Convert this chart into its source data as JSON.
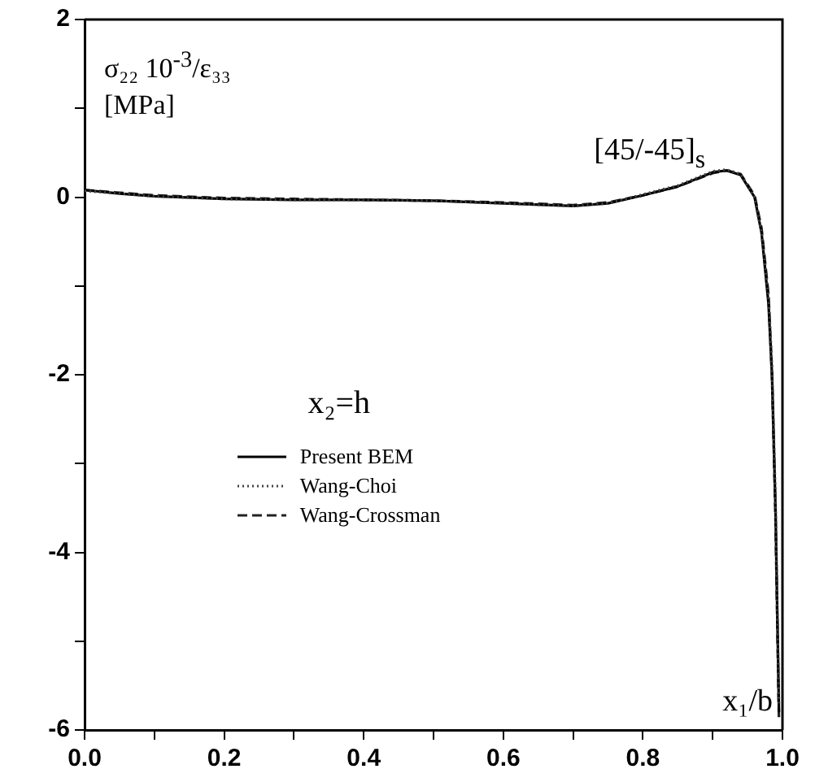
{
  "chart_data": {
    "type": "line",
    "xlabel": "x₁/b",
    "ylabel": "σ₂₂ 10$^{-3}$/ε₃₃ [MPa]",
    "annotations": [
      "[45/-45]$_{s}$",
      "x₂=h"
    ],
    "xlim": [
      0,
      1
    ],
    "ylim": [
      -6,
      2
    ],
    "xticks": [
      {
        "value": 0,
        "label": "0.0"
      },
      {
        "value": 0.1,
        "label": null
      },
      {
        "value": 0.2,
        "label": "0.2"
      },
      {
        "value": 0.3,
        "label": null
      },
      {
        "value": 0.4,
        "label": "0.4"
      },
      {
        "value": 0.5,
        "label": null
      },
      {
        "value": 0.6,
        "label": "0.6"
      },
      {
        "value": 0.7,
        "label": null
      },
      {
        "value": 0.8,
        "label": "0.8"
      },
      {
        "value": 0.9,
        "label": null
      },
      {
        "value": 1,
        "label": "1.0"
      }
    ],
    "yticks": [
      -6,
      {
        "value": -5,
        "label": null
      },
      -4,
      {
        "value": -3,
        "label": null
      },
      -2,
      {
        "value": -1,
        "label": null
      },
      0,
      {
        "value": 1,
        "label": null
      },
      2
    ],
    "legend": "center",
    "marker": "none",
    "grid": false,
    "series": [
      {
        "name": "Present BEM",
        "color": "#000000",
        "line_style": "solid",
        "x": [
          0,
          0.05,
          0.1,
          0.2,
          0.3,
          0.4,
          0.5,
          0.6,
          0.7,
          0.75,
          0.8,
          0.85,
          0.9,
          0.92,
          0.94,
          0.96,
          0.97,
          0.98,
          0.985,
          0.99,
          0.995
        ],
        "values": [
          0.08,
          0.04,
          0.01,
          -0.02,
          -0.03,
          -0.03,
          -0.04,
          -0.07,
          -0.1,
          -0.07,
          0.02,
          0.12,
          0.28,
          0.3,
          0.25,
          0.0,
          -0.4,
          -1.2,
          -2,
          -3.5,
          -5.8
        ]
      },
      {
        "name": "Wang-Choi",
        "color": "#444444",
        "line_style": "dotted",
        "x": [
          0,
          0.05,
          0.1,
          0.2,
          0.3,
          0.4,
          0.5,
          0.6,
          0.7,
          0.75,
          0.8,
          0.85,
          0.9,
          0.92,
          0.94,
          0.96,
          0.97,
          0.98,
          0.985,
          0.99,
          0.995
        ],
        "values": [
          0.07,
          0.04,
          0.01,
          -0.02,
          -0.03,
          -0.03,
          -0.04,
          -0.07,
          -0.1,
          -0.07,
          0.03,
          0.13,
          0.29,
          0.31,
          0.26,
          0.0,
          -0.4,
          -1.1,
          -1.9,
          -3.4,
          -5.7
        ]
      },
      {
        "name": "Wang-Crossman",
        "color": "#222222",
        "line_style": "dashed",
        "x": [
          0,
          0.05,
          0.1,
          0.2,
          0.3,
          0.4,
          0.5,
          0.6,
          0.7,
          0.75,
          0.8,
          0.85,
          0.9,
          0.92,
          0.94,
          0.96,
          0.97,
          0.98,
          0.985,
          0.99,
          0.995
        ],
        "values": [
          0.08,
          0.05,
          0.02,
          -0.01,
          -0.02,
          -0.03,
          -0.04,
          -0.06,
          -0.09,
          -0.06,
          0.02,
          0.12,
          0.27,
          0.3,
          0.26,
          0.02,
          -0.35,
          -1.1,
          -2,
          -3.6,
          -5.9
        ]
      }
    ]
  }
}
